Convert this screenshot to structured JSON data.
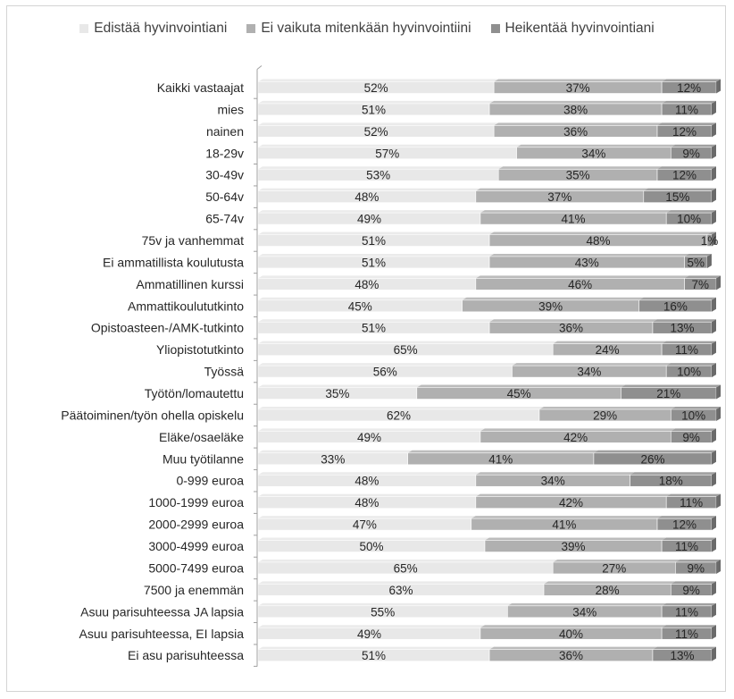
{
  "colors": {
    "series1": "#e8e8e8",
    "series2": "#b0b0b0",
    "series3": "#8f8f8f",
    "text": "#262626",
    "axis": "#a0a0a0"
  },
  "chart_data": {
    "type": "bar",
    "orientation": "horizontal",
    "stacked": true,
    "percent_stacked": true,
    "legend_position": "top",
    "grid": false,
    "xlim": [
      0,
      100
    ],
    "categories": [
      "Kaikki vastaajat",
      "mies",
      "nainen",
      "18-29v",
      "30-49v",
      "50-64v",
      "65-74v",
      "75v ja vanhemmat",
      "Ei ammatillista koulutusta",
      "Ammatillinen kurssi",
      "Ammattikoulututkinto",
      "Opistoasteen-/AMK-tutkinto",
      "Yliopistotutkinto",
      "Työssä",
      "Työtön/lomautettu",
      "Päätoiminen/työn ohella opiskelu",
      "Eläke/osaeläke",
      "Muu työtilanne",
      "0-999 euroa",
      "1000-1999 euroa",
      "2000-2999 euroa",
      "3000-4999 euroa",
      "5000-7499 euroa",
      "7500 ja enemmän",
      "Asuu parisuhteessa JA lapsia",
      "Asuu parisuhteessa, EI lapsia",
      "Ei asu parisuhteessa"
    ],
    "series": [
      {
        "name": "Edistää hyvinvointiani",
        "values": [
          52,
          51,
          52,
          57,
          53,
          48,
          49,
          51,
          51,
          48,
          45,
          51,
          65,
          56,
          35,
          62,
          49,
          33,
          48,
          48,
          47,
          50,
          65,
          63,
          55,
          49,
          51
        ],
        "labels": [
          "52%",
          "51%",
          "52%",
          "57%",
          "53%",
          "48%",
          "49%",
          "51%",
          "51%",
          "48%",
          "45%",
          "51%",
          "65%",
          "56%",
          "35%",
          "62%",
          "49%",
          "33%",
          "48%",
          "48%",
          "47%",
          "50%",
          "65%",
          "63%",
          "55%",
          "49%",
          "51%"
        ]
      },
      {
        "name": "Ei vaikuta mitenkään hyvinvointiini",
        "values": [
          37,
          38,
          36,
          34,
          35,
          37,
          41,
          48,
          43,
          46,
          39,
          36,
          24,
          34,
          45,
          29,
          42,
          41,
          34,
          42,
          41,
          39,
          27,
          28,
          34,
          40,
          36
        ],
        "labels": [
          "37%",
          "38%",
          "36%",
          "34%",
          "35%",
          "37%",
          "41%",
          "48%",
          "43%",
          "46%",
          "39%",
          "36%",
          "24%",
          "34%",
          "45%",
          "29%",
          "42%",
          "41%",
          "34%",
          "42%",
          "41%",
          "39%",
          "27%",
          "28%",
          "34%",
          "40%",
          "36%"
        ]
      },
      {
        "name": "Heikentää hyvinvointiani",
        "values": [
          12,
          11,
          12,
          9,
          12,
          15,
          10,
          1,
          5,
          7,
          16,
          13,
          11,
          10,
          21,
          10,
          9,
          26,
          18,
          11,
          12,
          11,
          9,
          9,
          11,
          11,
          13
        ],
        "labels": [
          "12%",
          "11%",
          "12%",
          "9%",
          "12%",
          "15%",
          "10%",
          "1%",
          "5%",
          "7%",
          "16%",
          "13%",
          "11%",
          "10%",
          "21%",
          "10%",
          "9%",
          "26%",
          "18%",
          "11%",
          "12%",
          "11%",
          "9%",
          "9%",
          "11%",
          "11%",
          "13%"
        ]
      }
    ]
  }
}
